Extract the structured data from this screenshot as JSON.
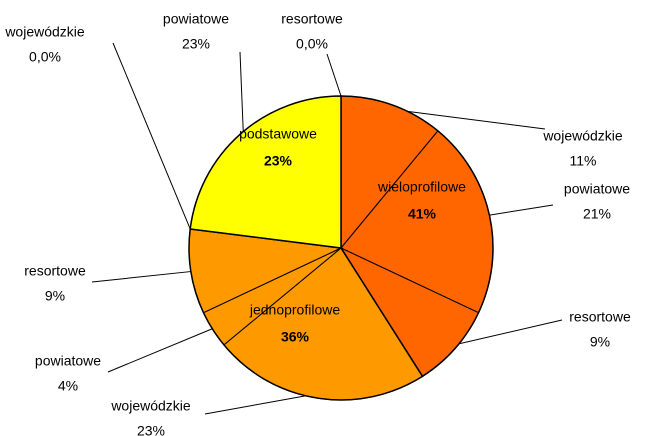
{
  "chart_data": {
    "type": "pie",
    "groups": [
      {
        "name": "wieloprofilowe",
        "value": 41,
        "value_label": "41%",
        "color": "#ff6600",
        "categories": [
          "wojewódzkie",
          "powiatowe",
          "resortowe"
        ],
        "values": [
          11,
          21,
          9
        ],
        "value_labels": [
          "11%",
          "21%",
          "9%"
        ]
      },
      {
        "name": "jednoprofilowe",
        "value": 36,
        "value_label": "36%",
        "color": "#ff9900",
        "categories": [
          "wojewódzkie",
          "powiatowe",
          "resortowe"
        ],
        "values": [
          23,
          4,
          9
        ],
        "value_labels": [
          "23%",
          "4%",
          "9%"
        ]
      },
      {
        "name": "podstawowe",
        "value": 23,
        "value_label": "23%",
        "color": "#ffff00",
        "categories": [
          "wojewódzkie",
          "powiatowe",
          "resortowe"
        ],
        "values": [
          0,
          23,
          0
        ],
        "value_labels": [
          "0,0%",
          "23%",
          "0,0%"
        ]
      }
    ]
  }
}
